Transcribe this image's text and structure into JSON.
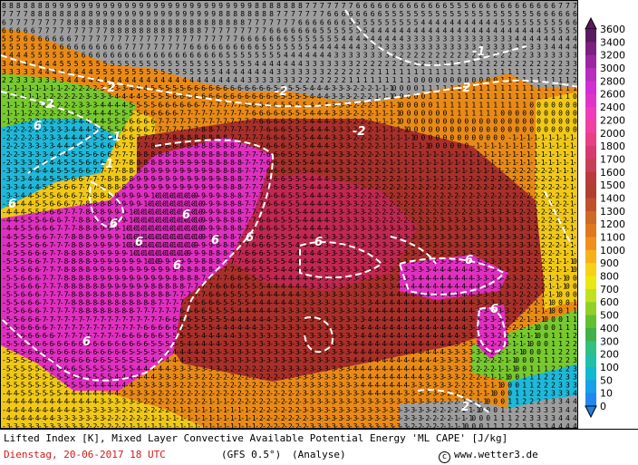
{
  "map": {
    "title": "Lifted Index [K], Mixed Layer Convective Available Potential Energy 'ML CAPE' [J/kg]",
    "date_label": "Dienstag, 20-06-2017   18 UTC",
    "model_label": "(GFS 0.5°)",
    "run_label": "(Analyse)",
    "copyright_symbol": "c",
    "copyright_site": "www.wetter3.de",
    "contour_labels": [
      "6",
      "6",
      "6",
      "6",
      "6",
      "6",
      "6",
      "6",
      "6",
      "6",
      "6",
      "6",
      "-2",
      "-2",
      "-2",
      "-2",
      "-2",
      "-1",
      "-1",
      "-1",
      "2"
    ]
  },
  "legend": {
    "levels": [
      "3600",
      "3400",
      "3200",
      "3000",
      "2800",
      "2600",
      "2400",
      "2200",
      "2000",
      "1800",
      "1700",
      "1600",
      "1500",
      "1400",
      "1300",
      "1200",
      "1100",
      "1000",
      "900",
      "800",
      "700",
      "600",
      "500",
      "400",
      "300",
      "200",
      "100",
      "50",
      "10",
      "0"
    ],
    "colors": [
      "#5a1a5e",
      "#7a207e",
      "#9a27a0",
      "#b82cbe",
      "#d12fd3",
      "#e233c7",
      "#f03cb8",
      "#f040a0",
      "#e83f86",
      "#d63a6e",
      "#c73f56",
      "#b83a3c",
      "#b0402e",
      "#c0502a",
      "#cc6a28",
      "#e0781c",
      "#f0901c",
      "#f8b01a",
      "#f8d018",
      "#e8e812",
      "#c0e020",
      "#90d028",
      "#60c030",
      "#40b048",
      "#30c080",
      "#20c0a8",
      "#10b8d0",
      "#18a0e8",
      "#2088f0",
      "#2080e0"
    ]
  },
  "regions": {
    "gray_color": "#9e9e9e",
    "field_colors": {
      "green": "#78c830",
      "yellow": "#f0c818",
      "orange": "#e88a18",
      "brown": "#a8302a",
      "crimson": "#c02850",
      "magenta": "#e030c0",
      "cyan": "#20b8d8"
    }
  }
}
